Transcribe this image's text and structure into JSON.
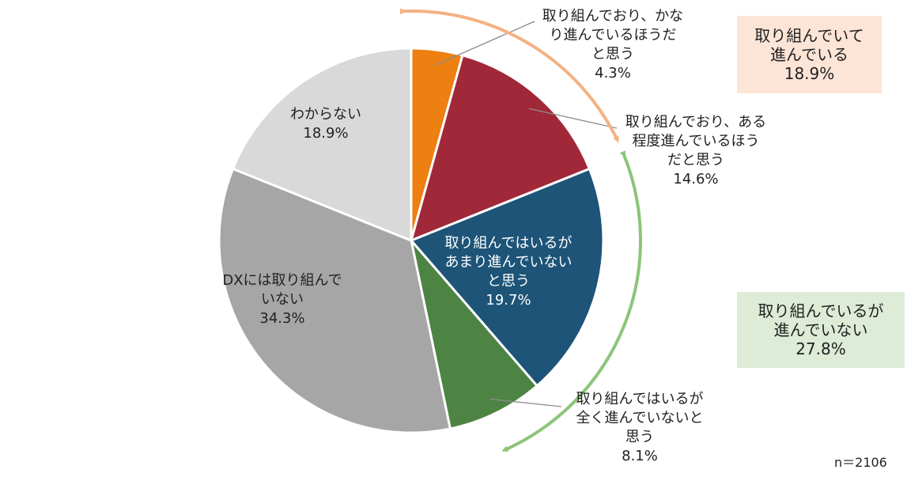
{
  "chart_data": {
    "type": "pie",
    "title": "",
    "slices": [
      {
        "label_lines": [
          "取り組んでおり、かな",
          "り進んでいるほうだ",
          "と思う"
        ],
        "value": 4.3,
        "value_label": "4.3%",
        "color": "#EE7F11"
      },
      {
        "label_lines": [
          "取り組んでおり、ある",
          "程度進んでいるほう",
          "だと思う"
        ],
        "value": 14.6,
        "value_label": "14.6%",
        "color": "#A12838"
      },
      {
        "label_lines": [
          "取り組んではいるが",
          "あまり進んでいない",
          "と思う"
        ],
        "value": 19.7,
        "value_label": "19.7%",
        "color": "#1D5478"
      },
      {
        "label_lines": [
          "取り組んではいるが",
          "全く進んでいないと",
          "思う"
        ],
        "value": 8.1,
        "value_label": "8.1%",
        "color": "#4D8443"
      },
      {
        "label_lines": [
          "DXには取り組んで",
          "いない"
        ],
        "value": 34.3,
        "value_label": "34.3%",
        "color": "#A6A6A6"
      },
      {
        "label_lines": [
          "わからない"
        ],
        "value": 18.9,
        "value_label": "18.9%",
        "color": "#D9D9D9"
      }
    ],
    "groups": [
      {
        "lines": [
          "取り組んでいて",
          "進んでいる"
        ],
        "value_label": "18.9%",
        "bg": "#FCE4D6",
        "arrow_color": "#F4B183"
      },
      {
        "lines": [
          "取り組んでいるが",
          "進んでいない"
        ],
        "value_label": "27.8%",
        "bg": "#DDEBD7",
        "arrow_color": "#8CC57A"
      }
    ],
    "n_label": "n＝2106"
  }
}
